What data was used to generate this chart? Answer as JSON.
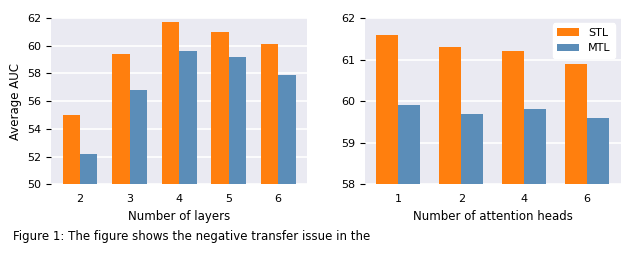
{
  "left_chart": {
    "categories": [
      2,
      3,
      4,
      5,
      6
    ],
    "stl_values": [
      55.0,
      59.4,
      61.7,
      61.0,
      60.1
    ],
    "mtl_values": [
      52.2,
      56.8,
      59.6,
      59.2,
      57.9
    ],
    "xlabel": "Number of layers",
    "ylabel": "Average AUC",
    "ylim": [
      50,
      62
    ],
    "yticks": [
      50,
      52,
      54,
      56,
      58,
      60,
      62
    ]
  },
  "right_chart": {
    "categories": [
      1,
      2,
      4,
      6
    ],
    "stl_values": [
      61.6,
      61.3,
      61.2,
      60.9
    ],
    "mtl_values": [
      59.9,
      59.7,
      59.8,
      59.6
    ],
    "xlabel": "Number of attention heads",
    "ylabel": "",
    "ylim": [
      58,
      62
    ],
    "yticks": [
      58,
      59,
      60,
      61,
      62
    ]
  },
  "stl_color": "#ff7f0e",
  "mtl_color": "#5b8db8",
  "bar_width": 0.35,
  "legend_labels": [
    "STL",
    "MTL"
  ],
  "grid_color": "white",
  "background_color": "#eaeaf2",
  "caption": "Figure 1: The figure shows the negative transfer issue in the"
}
